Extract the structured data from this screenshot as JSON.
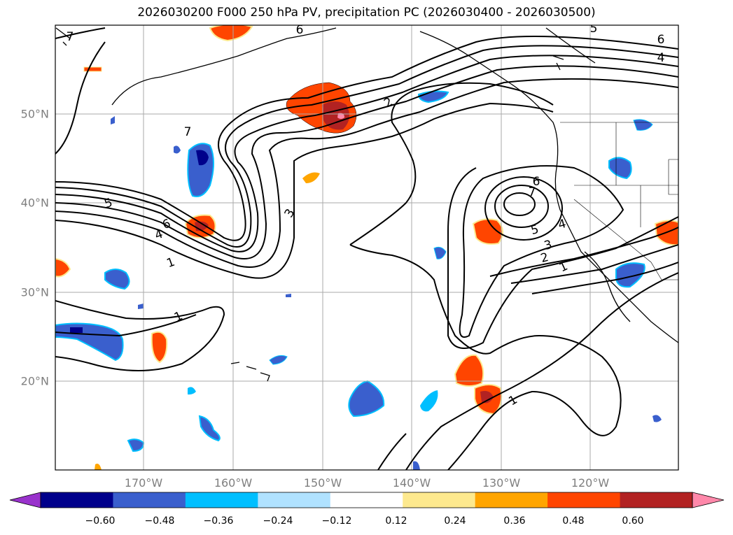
{
  "title": "2026030200 F000 250 hPa PV, precipitation PC (2026030400 - 2026030500)",
  "lon_labels": [
    "170°W",
    "160°W",
    "150°W",
    "140°W",
    "130°W",
    "120°W"
  ],
  "lat_labels": [
    "50°N",
    "40°N",
    "30°N",
    "20°N"
  ],
  "contour_labels": [
    "5",
    "6",
    "4",
    "6",
    "7",
    "2",
    "7",
    "3",
    "5",
    "6",
    "4",
    "1",
    "3",
    "2",
    "1",
    "5",
    "4",
    "6",
    "7",
    "1",
    "1"
  ],
  "colorbar": {
    "ticks": [
      "−0.60",
      "−0.48",
      "−0.36",
      "−0.24",
      "−0.12",
      "0.12",
      "0.24",
      "0.36",
      "0.48",
      "0.60"
    ],
    "colors": [
      "#9932cc",
      "#00008b",
      "#3a5fcd",
      "#00bfff",
      "#b0e2ff",
      "#ffffff",
      "#fde98e",
      "#ffa500",
      "#ff4500",
      "#b22222",
      "#ff88aa"
    ]
  },
  "colors": {
    "frame": "#000000",
    "grid": "#aaaaaa",
    "contour": "#000000",
    "coast": "#000000"
  }
}
